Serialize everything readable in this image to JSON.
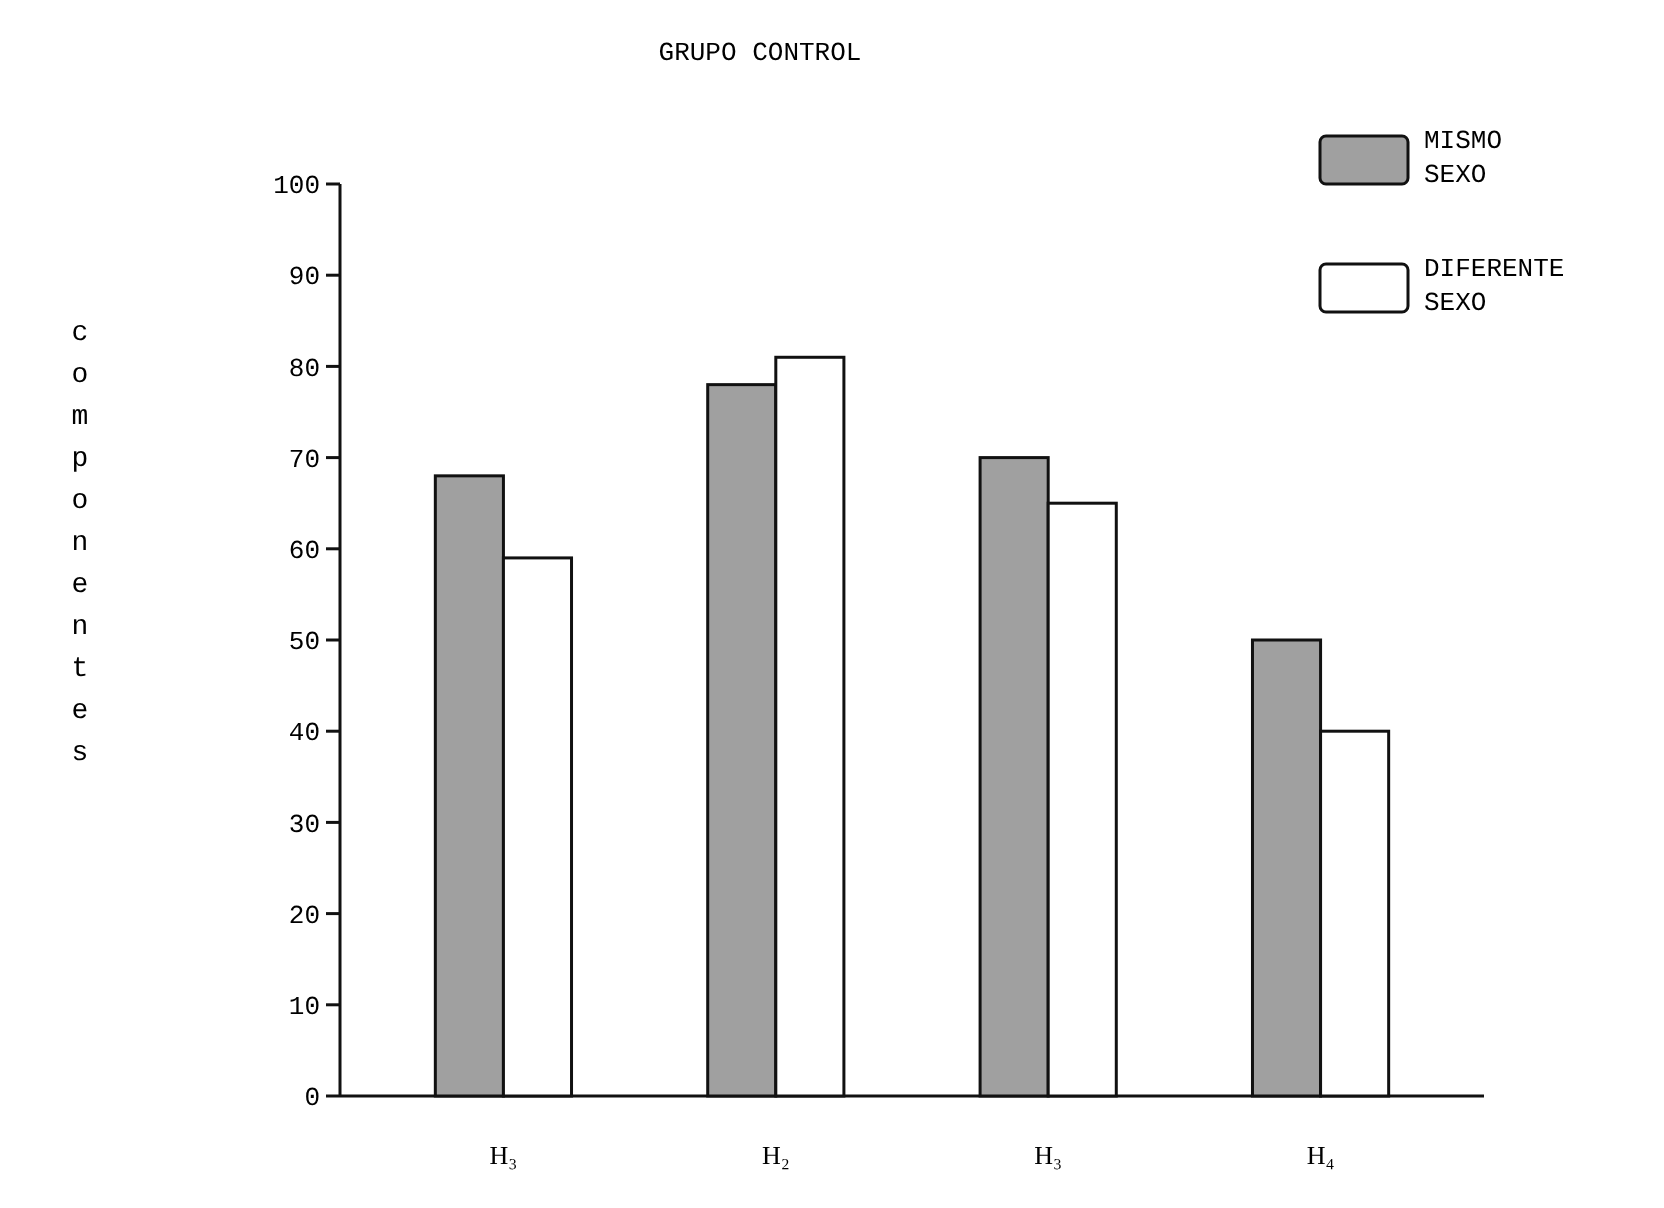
{
  "chart_data": {
    "type": "bar",
    "title": "GRUPO CONTROL",
    "ylabel": "componentes",
    "categories": [
      "H₃",
      "H₂",
      "H₃",
      "H₄"
    ],
    "series": [
      {
        "name": "MISMO SEXO",
        "color": "#a0a0a0",
        "values": [
          68,
          78,
          70,
          50
        ]
      },
      {
        "name": "DIFERENTE SEXO",
        "color": "#ffffff",
        "values": [
          59,
          81,
          65,
          40
        ]
      }
    ],
    "ylim": [
      0,
      100
    ],
    "yticks": [
      0,
      10,
      20,
      30,
      40,
      50,
      60,
      70,
      80,
      90,
      100
    ],
    "grid": false,
    "legend": "top right"
  }
}
